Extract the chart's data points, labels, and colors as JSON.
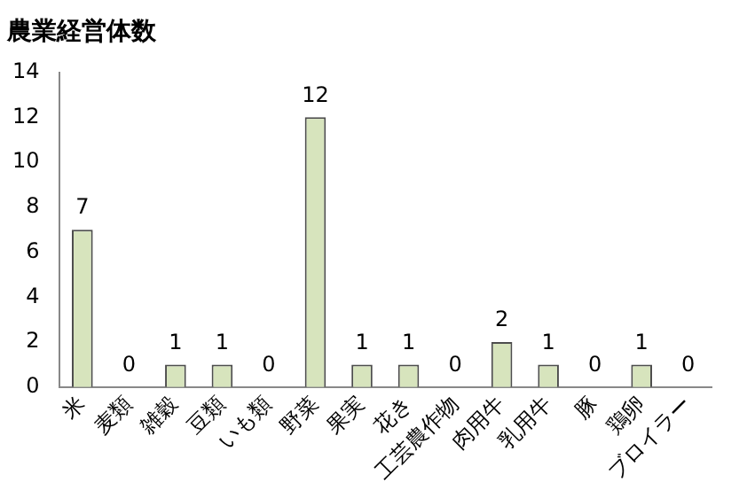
{
  "chart_data": {
    "type": "bar",
    "title": "農業経営体数",
    "categories": [
      "米",
      "麦類",
      "雑穀",
      "豆類",
      "いも類",
      "野菜",
      "果実",
      "花き",
      "工芸農作物",
      "肉用牛",
      "乳用牛",
      "豚",
      "鶏卵",
      "ブロイラー"
    ],
    "values": [
      7,
      0,
      1,
      1,
      0,
      12,
      1,
      1,
      0,
      2,
      1,
      0,
      1,
      0
    ],
    "color": "#d7e4bd",
    "ylim": [
      0,
      14
    ],
    "yticks": [
      0,
      2,
      4,
      6,
      8,
      10,
      12,
      14
    ],
    "grid": false,
    "legend": false,
    "data_labels": true
  }
}
